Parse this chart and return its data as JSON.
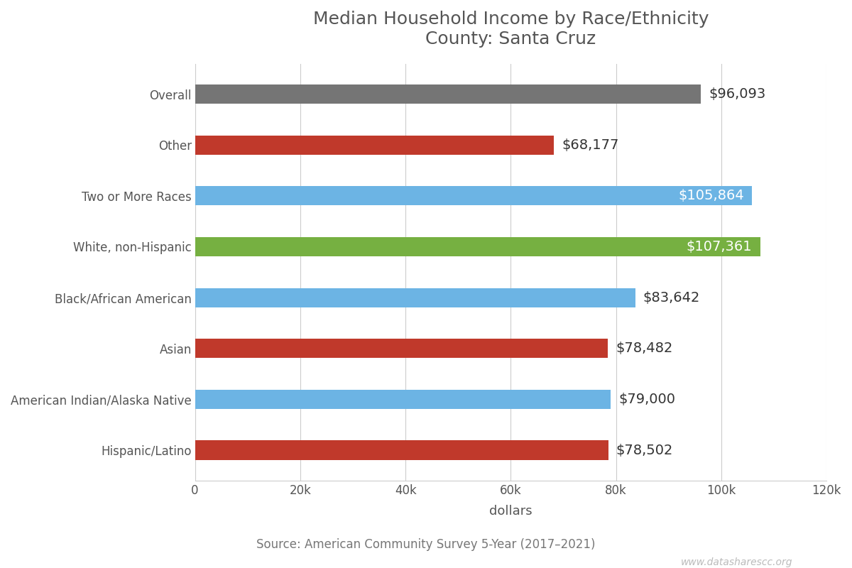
{
  "title": "Median Household Income by Race/Ethnicity\nCounty: Santa Cruz",
  "categories": [
    "Hispanic/Latino",
    "American Indian/Alaska Native",
    "Asian",
    "Black/African American",
    "White, non-Hispanic",
    "Two or More Races",
    "Other",
    "Overall"
  ],
  "values": [
    78502,
    79000,
    78482,
    83642,
    107361,
    105864,
    68177,
    96093
  ],
  "colors": [
    "#c0392b",
    "#6cb4e4",
    "#c0392b",
    "#6cb4e4",
    "#76b041",
    "#6cb4e4",
    "#c0392b",
    "#757575"
  ],
  "labels": [
    "$78,502",
    "$79,000",
    "$78,482",
    "$83,642",
    "$107,361",
    "$105,864",
    "$68,177",
    "$96,093"
  ],
  "label_inside": [
    false,
    false,
    false,
    false,
    true,
    true,
    false,
    false
  ],
  "xlabel": "dollars",
  "xlim": [
    0,
    120000
  ],
  "xticks": [
    0,
    20000,
    40000,
    60000,
    80000,
    100000,
    120000
  ],
  "xtick_labels": [
    "0",
    "20k",
    "40k",
    "60k",
    "80k",
    "100k",
    "120k"
  ],
  "source": "Source: American Community Survey 5-Year (2017–2021)",
  "watermark": "www.datasharescc.org",
  "bg_color": "#ffffff",
  "title_color": "#555555",
  "title_fontsize": 18,
  "bar_height": 0.38,
  "label_fontsize": 14,
  "axis_label_fontsize": 13,
  "ytick_fontsize": 12,
  "xtick_fontsize": 12
}
